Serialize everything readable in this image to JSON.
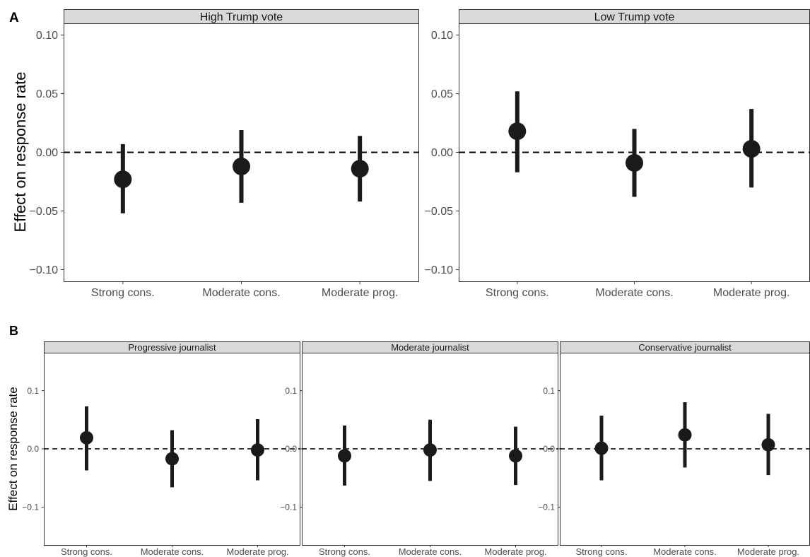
{
  "chart_data": [
    {
      "type": "scatter",
      "panel_label": "A",
      "ylabel": "Effect on response rate",
      "ylim": [
        -0.11,
        0.11
      ],
      "yticks": [
        "−0.10",
        "−0.05",
        "0.00",
        "0.05",
        "0.10"
      ],
      "ytick_values": [
        -0.1,
        -0.05,
        0.0,
        0.05,
        0.1
      ],
      "categories": [
        "Strong cons.",
        "Moderate cons.",
        "Moderate prog."
      ],
      "reference_line": 0.0,
      "facets": [
        {
          "title": "High Trump vote",
          "points": [
            {
              "x": "Strong cons.",
              "estimate": -0.023,
              "low": -0.052,
              "high": 0.007
            },
            {
              "x": "Moderate cons.",
              "estimate": -0.012,
              "low": -0.043,
              "high": 0.019
            },
            {
              "x": "Moderate prog.",
              "estimate": -0.014,
              "low": -0.042,
              "high": 0.014
            }
          ]
        },
        {
          "title": "Low Trump vote",
          "points": [
            {
              "x": "Strong cons.",
              "estimate": 0.018,
              "low": -0.017,
              "high": 0.052
            },
            {
              "x": "Moderate cons.",
              "estimate": -0.009,
              "low": -0.038,
              "high": 0.02
            },
            {
              "x": "Moderate prog.",
              "estimate": 0.003,
              "low": -0.03,
              "high": 0.037
            }
          ]
        }
      ]
    },
    {
      "type": "scatter",
      "panel_label": "B",
      "ylabel": "Effect on response rate",
      "ylim": [
        -0.165,
        0.165
      ],
      "yticks": [
        "−0.1",
        "0.0",
        "0.1"
      ],
      "ytick_values": [
        -0.1,
        0.0,
        0.1
      ],
      "categories": [
        "Strong cons.",
        "Moderate cons.",
        "Moderate prog."
      ],
      "reference_line": 0.0,
      "facets": [
        {
          "title": "Progressive journalist",
          "points": [
            {
              "x": "Strong cons.",
              "estimate": 0.019,
              "low": -0.037,
              "high": 0.073
            },
            {
              "x": "Moderate cons.",
              "estimate": -0.017,
              "low": -0.066,
              "high": 0.032
            },
            {
              "x": "Moderate prog.",
              "estimate": -0.002,
              "low": -0.054,
              "high": 0.051
            }
          ]
        },
        {
          "title": "Moderate journalist",
          "points": [
            {
              "x": "Strong cons.",
              "estimate": -0.012,
              "low": -0.063,
              "high": 0.04
            },
            {
              "x": "Moderate cons.",
              "estimate": -0.002,
              "low": -0.055,
              "high": 0.05
            },
            {
              "x": "Moderate prog.",
              "estimate": -0.012,
              "low": -0.062,
              "high": 0.038
            }
          ]
        },
        {
          "title": "Conservative journalist",
          "points": [
            {
              "x": "Strong cons.",
              "estimate": 0.001,
              "low": -0.054,
              "high": 0.057
            },
            {
              "x": "Moderate cons.",
              "estimate": 0.024,
              "low": -0.032,
              "high": 0.08
            },
            {
              "x": "Moderate prog.",
              "estimate": 0.007,
              "low": -0.045,
              "high": 0.06
            }
          ]
        }
      ]
    }
  ],
  "colors": {
    "point": "#1a1a1a",
    "strip_fill": "#d9d9d9",
    "strip_border": "#333333",
    "panel_border": "#333333",
    "tick_text": "#4d4d4d",
    "reference_line": "#000000"
  }
}
